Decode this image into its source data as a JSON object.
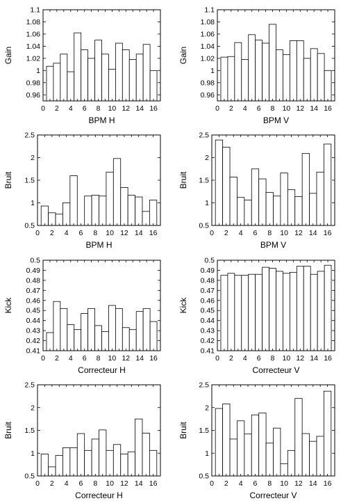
{
  "chart_data": [
    {
      "type": "bar",
      "xlabel": "BPM H",
      "ylabel": "Gain",
      "xlim": [
        0,
        17
      ],
      "ylim": [
        0.95,
        1.1
      ],
      "xticks": [
        "0",
        "2",
        "4",
        "6",
        "8",
        "10",
        "12",
        "14",
        "16"
      ],
      "yticks": [
        "0.96",
        "0.98",
        "1",
        "1.02",
        "1.04",
        "1.06",
        "1.08",
        "1.1"
      ],
      "x": [
        1,
        2,
        3,
        4,
        5,
        6,
        7,
        8,
        9,
        10,
        11,
        12,
        13,
        14,
        15,
        16
      ],
      "values": [
        1.007,
        1.012,
        1.027,
        0.998,
        1.062,
        1.034,
        1.02,
        1.05,
        1.027,
        1.002,
        1.045,
        1.034,
        1.018,
        1.027,
        1.043,
        1.0
      ]
    },
    {
      "type": "bar",
      "xlabel": "BPM V",
      "ylabel": "Gain",
      "xlim": [
        0,
        17
      ],
      "ylim": [
        0.95,
        1.1
      ],
      "xticks": [
        "0",
        "2",
        "4",
        "6",
        "8",
        "10",
        "12",
        "14",
        "16"
      ],
      "yticks": [
        "0.96",
        "0.98",
        "1",
        "1.02",
        "1.04",
        "1.06",
        "1.08",
        "1.1"
      ],
      "x": [
        1,
        2,
        3,
        4,
        5,
        6,
        7,
        8,
        9,
        10,
        11,
        12,
        13,
        14,
        15,
        16
      ],
      "values": [
        1.022,
        1.023,
        1.046,
        1.018,
        1.059,
        1.05,
        1.045,
        1.076,
        1.034,
        1.026,
        1.049,
        1.049,
        1.02,
        1.036,
        1.028,
        1.0
      ]
    },
    {
      "type": "bar",
      "xlabel": "BPM H",
      "ylabel": "Bruit",
      "xlim": [
        0,
        17
      ],
      "ylim": [
        0.5,
        2.5
      ],
      "xticks": [
        "0",
        "2",
        "4",
        "6",
        "8",
        "10",
        "12",
        "14",
        "16"
      ],
      "yticks": [
        "0.5",
        "1",
        "1.5",
        "2",
        "2.5"
      ],
      "x": [
        1,
        2,
        3,
        4,
        5,
        6,
        7,
        8,
        9,
        10,
        11,
        12,
        13,
        14,
        15,
        16
      ],
      "values": [
        0.93,
        0.78,
        0.75,
        1.0,
        1.6,
        0.5,
        1.15,
        1.17,
        1.15,
        1.68,
        1.98,
        1.34,
        1.17,
        1.13,
        0.81,
        1.06
      ]
    },
    {
      "type": "bar",
      "xlabel": "BPM V",
      "ylabel": "Bruit",
      "xlim": [
        0,
        17
      ],
      "ylim": [
        0.5,
        2.5
      ],
      "xticks": [
        "0",
        "2",
        "4",
        "6",
        "8",
        "10",
        "12",
        "14",
        "16"
      ],
      "yticks": [
        "0.5",
        "1",
        "1.5",
        "2",
        "2.5"
      ],
      "x": [
        1,
        2,
        3,
        4,
        5,
        6,
        7,
        8,
        9,
        10,
        11,
        12,
        13,
        14,
        15,
        16
      ],
      "values": [
        2.39,
        2.23,
        1.57,
        1.12,
        1.06,
        1.75,
        1.53,
        1.23,
        1.15,
        1.66,
        1.29,
        1.14,
        2.09,
        1.21,
        1.68,
        2.3
      ]
    },
    {
      "type": "bar",
      "xlabel": "Correcteur H",
      "ylabel": "Kick",
      "xlim": [
        0,
        17
      ],
      "ylim": [
        0.41,
        0.5
      ],
      "xticks": [
        "0",
        "2",
        "4",
        "6",
        "8",
        "10",
        "12",
        "14",
        "16"
      ],
      "yticks": [
        "0.41",
        "0.42",
        "0.43",
        "0.44",
        "0.45",
        "0.46",
        "0.47",
        "0.48",
        "0.49",
        "0.5"
      ],
      "x": [
        1,
        2,
        3,
        4,
        5,
        6,
        7,
        8,
        9,
        10,
        11,
        12,
        13,
        14,
        15,
        16
      ],
      "values": [
        0.428,
        0.459,
        0.452,
        0.436,
        0.431,
        0.447,
        0.452,
        0.435,
        0.429,
        0.455,
        0.452,
        0.433,
        0.431,
        0.449,
        0.452,
        0.439
      ]
    },
    {
      "type": "bar",
      "xlabel": "Correcteur V",
      "ylabel": "Kick",
      "xlim": [
        0,
        17
      ],
      "ylim": [
        0.41,
        0.5
      ],
      "xticks": [
        "0",
        "2",
        "4",
        "6",
        "8",
        "10",
        "12",
        "14",
        "16"
      ],
      "yticks": [
        "0.41",
        "0.42",
        "0.43",
        "0.44",
        "0.45",
        "0.46",
        "0.47",
        "0.48",
        "0.49",
        "0.5"
      ],
      "x": [
        1,
        2,
        3,
        4,
        5,
        6,
        7,
        8,
        9,
        10,
        11,
        12,
        13,
        14,
        15,
        16
      ],
      "values": [
        0.485,
        0.487,
        0.485,
        0.485,
        0.486,
        0.486,
        0.493,
        0.492,
        0.489,
        0.487,
        0.488,
        0.494,
        0.494,
        0.486,
        0.489,
        0.495
      ]
    },
    {
      "type": "bar",
      "xlabel": "Correcteur H",
      "ylabel": "Bruit",
      "xlim": [
        0,
        17
      ],
      "ylim": [
        0.5,
        2.5
      ],
      "xticks": [
        "0",
        "2",
        "4",
        "6",
        "8",
        "10",
        "12",
        "14",
        "16"
      ],
      "yticks": [
        "0.5",
        "1",
        "1.5",
        "2",
        "2.5"
      ],
      "x": [
        1,
        2,
        3,
        4,
        5,
        6,
        7,
        8,
        9,
        10,
        11,
        12,
        13,
        14,
        15,
        16
      ],
      "values": [
        0.98,
        0.7,
        0.95,
        1.12,
        1.12,
        1.43,
        1.06,
        1.31,
        1.51,
        1.06,
        1.19,
        0.98,
        1.03,
        1.75,
        1.44,
        1.06
      ]
    },
    {
      "type": "bar",
      "xlabel": "Correcteur V",
      "ylabel": "Bruit",
      "xlim": [
        0,
        17
      ],
      "ylim": [
        0.5,
        2.5
      ],
      "xticks": [
        "0",
        "2",
        "4",
        "6",
        "8",
        "10",
        "12",
        "14",
        "16"
      ],
      "yticks": [
        "0.5",
        "1",
        "1.5",
        "2",
        "2.5"
      ],
      "x": [
        1,
        2,
        3,
        4,
        5,
        6,
        7,
        8,
        9,
        10,
        11,
        12,
        13,
        14,
        15,
        16
      ],
      "values": [
        1.98,
        2.08,
        1.31,
        1.71,
        1.42,
        1.84,
        1.88,
        1.22,
        1.55,
        0.77,
        1.06,
        2.2,
        1.43,
        1.26,
        1.37,
        2.36
      ]
    }
  ]
}
